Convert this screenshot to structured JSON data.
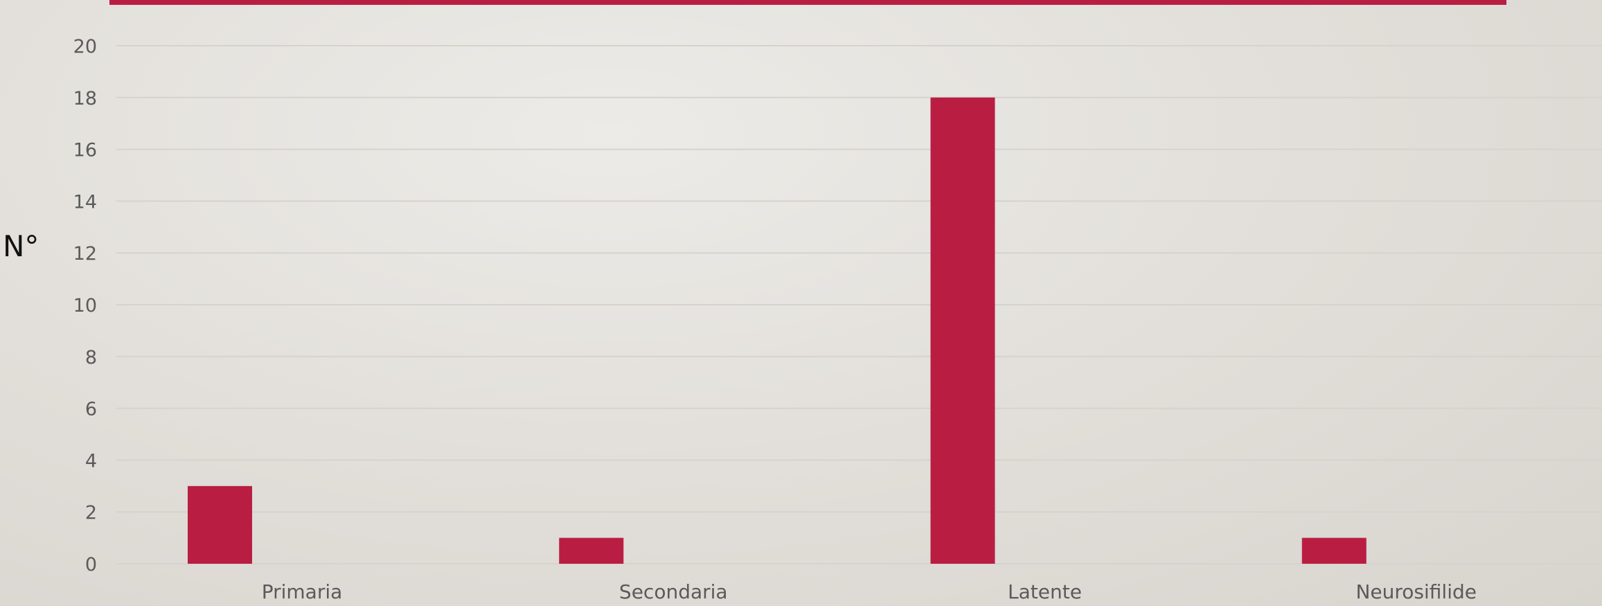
{
  "colors": {
    "bar": "#b91e42",
    "accent_band": "#b91e42",
    "gridline": "#d6d3ce",
    "tick_text": "#5a5a5a"
  },
  "chart_data": {
    "type": "bar",
    "categories": [
      "Primaria",
      "Secondaria",
      "Latente",
      "Neurosifilide"
    ],
    "values": [
      3,
      1,
      18,
      1
    ],
    "title": "",
    "xlabel": "",
    "ylabel": "N°",
    "ylim": [
      0,
      20
    ],
    "yticks": [
      0,
      2,
      4,
      6,
      8,
      10,
      12,
      14,
      16,
      18,
      20
    ],
    "grid": true,
    "legend": "none"
  }
}
